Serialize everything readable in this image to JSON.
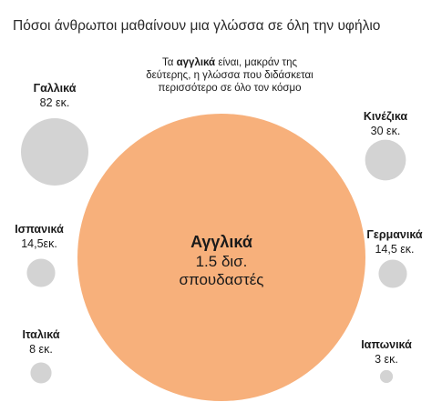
{
  "chart_data": {
    "type": "bubble",
    "title": "Πόσοι άνθρωποι μαθαίνουν μια γλώσσα σε όλη την υφήλιο",
    "annotation": {
      "prefix": "Τα ",
      "bold": "αγγλικά",
      "rest": " είναι, μακράν της δεύτερης, η γλώσσα που διδάσκεται περισσότερο σε όλο τον κόσμο"
    },
    "main": {
      "name": "Αγγλικά",
      "value": 1500,
      "value_label": "1.5 δισ.",
      "value_label_2": "σπουδαστές",
      "color": "#f7b07b"
    },
    "series": [
      {
        "name": "Γαλλικά",
        "value": 82,
        "value_label": "82 εκ."
      },
      {
        "name": "Ισπανικά",
        "value": 14.5,
        "value_label": "14,5εκ."
      },
      {
        "name": "Ιταλικά",
        "value": 8,
        "value_label": "8 εκ."
      },
      {
        "name": "Κινέζικα",
        "value": 30,
        "value_label": "30 εκ."
      },
      {
        "name": "Γερμανικά",
        "value": 14.5,
        "value_label": "14,5 εκ."
      },
      {
        "name": "Ιαπωνικά",
        "value": 3,
        "value_label": "3 εκ."
      }
    ],
    "units": "εκατομμύρια σπουδαστές",
    "bubble_color": "#d3d3d3"
  }
}
